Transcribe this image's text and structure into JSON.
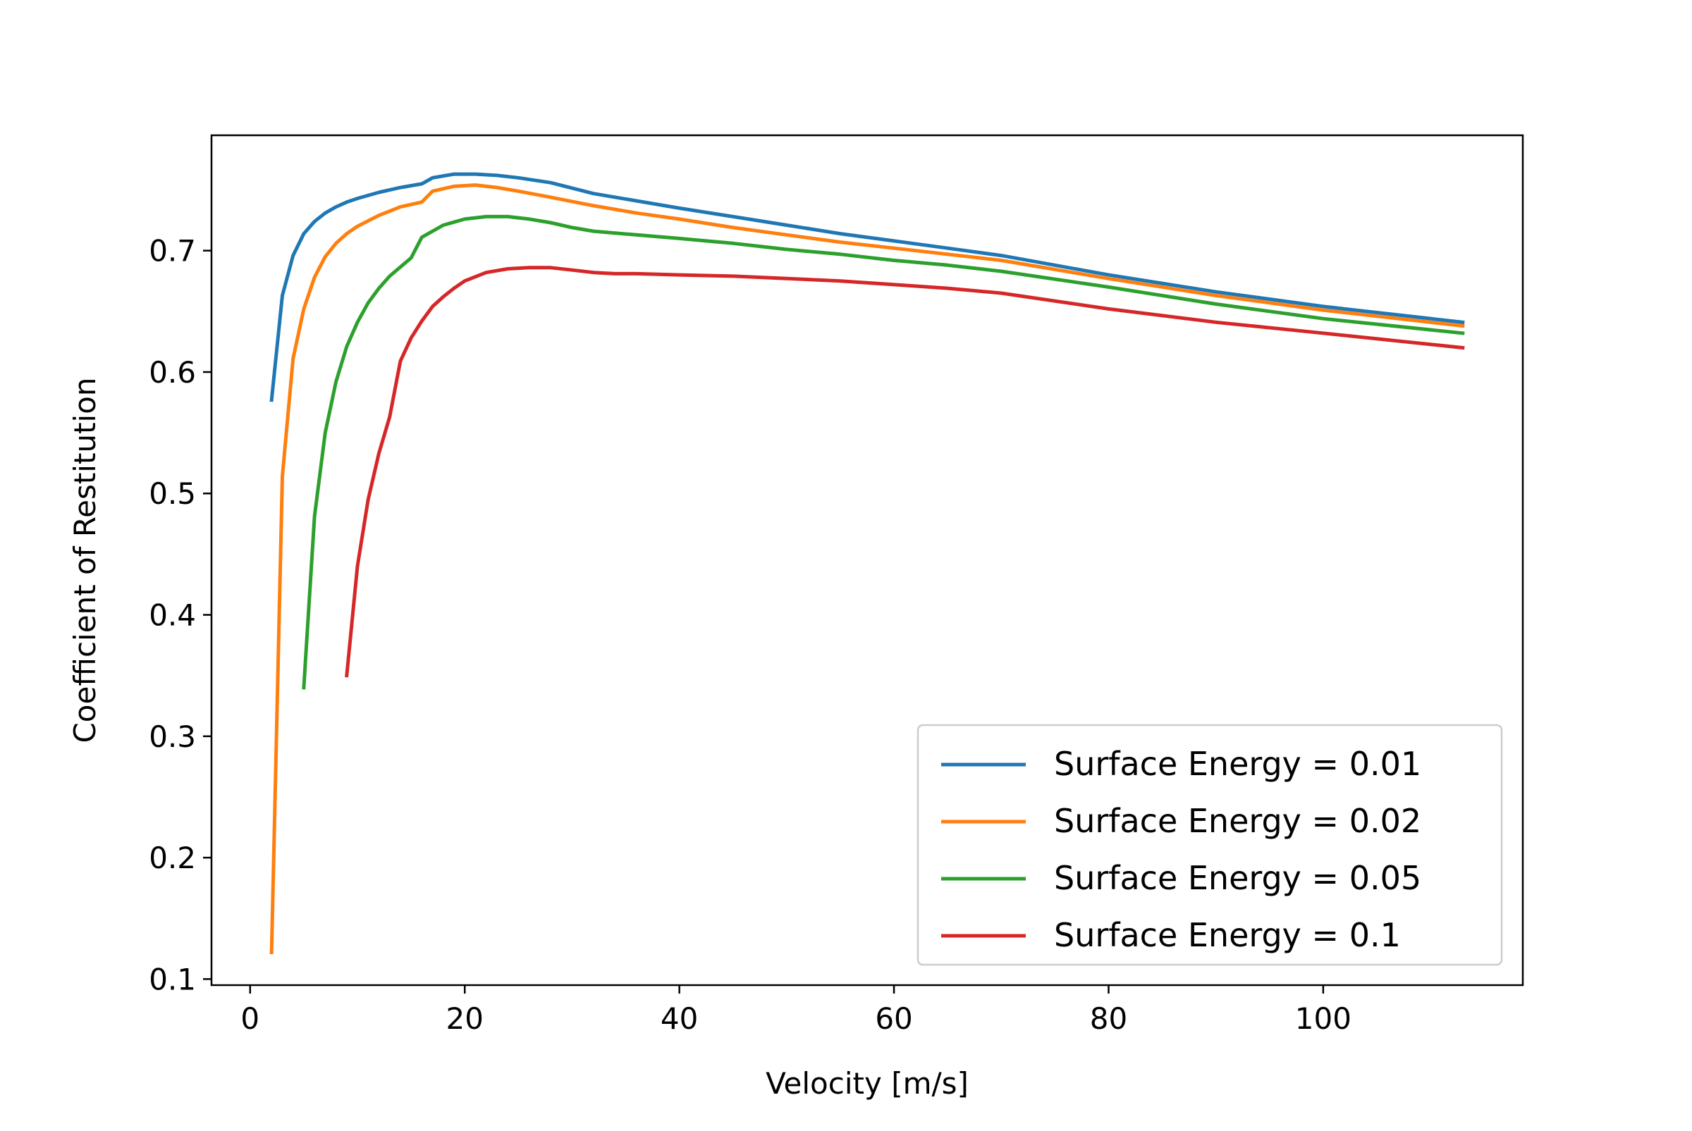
{
  "chart_data": {
    "type": "line",
    "title": "",
    "xlabel": "Velocity [m/s]",
    "ylabel": "Coefficient of Restitution",
    "xlim": [
      -3.6,
      118.6
    ],
    "ylim": [
      0.095,
      0.795
    ],
    "xticks": [
      0,
      20,
      40,
      60,
      80,
      100
    ],
    "xtick_labels": [
      "0",
      "20",
      "40",
      "60",
      "80",
      "100"
    ],
    "yticks": [
      0.1,
      0.2,
      0.3,
      0.4,
      0.5,
      0.6,
      0.7
    ],
    "ytick_labels": [
      "0.1",
      "0.2",
      "0.3",
      "0.4",
      "0.5",
      "0.6",
      "0.7"
    ],
    "grid": false,
    "legend_position": "lower-right",
    "series": [
      {
        "name": "Surface Energy = 0.01",
        "color": "#1f77b4",
        "x": [
          2,
          3,
          4,
          5,
          6,
          7,
          8,
          9,
          10,
          12,
          14,
          16,
          17,
          19,
          21,
          23,
          25,
          28,
          32,
          36,
          40,
          45,
          50,
          55,
          60,
          65,
          70,
          80,
          90,
          100,
          113
        ],
        "y": [
          0.577,
          0.663,
          0.696,
          0.714,
          0.724,
          0.731,
          0.736,
          0.74,
          0.743,
          0.748,
          0.752,
          0.755,
          0.76,
          0.763,
          0.763,
          0.762,
          0.76,
          0.756,
          0.747,
          0.741,
          0.735,
          0.728,
          0.721,
          0.714,
          0.708,
          0.702,
          0.696,
          0.68,
          0.666,
          0.654,
          0.641
        ]
      },
      {
        "name": "Surface Energy = 0.02",
        "color": "#ff7f0e",
        "x": [
          2,
          3,
          4,
          5,
          6,
          7,
          8,
          9,
          10,
          12,
          14,
          16,
          17,
          19,
          21,
          23,
          25,
          28,
          32,
          36,
          40,
          45,
          50,
          55,
          60,
          65,
          70,
          80,
          90,
          100,
          113
        ],
        "y": [
          0.122,
          0.514,
          0.611,
          0.652,
          0.678,
          0.695,
          0.706,
          0.714,
          0.72,
          0.729,
          0.736,
          0.74,
          0.749,
          0.753,
          0.754,
          0.752,
          0.749,
          0.744,
          0.737,
          0.731,
          0.726,
          0.719,
          0.713,
          0.707,
          0.702,
          0.697,
          0.692,
          0.677,
          0.663,
          0.651,
          0.638
        ]
      },
      {
        "name": "Surface Energy = 0.05",
        "color": "#2ca02c",
        "x": [
          5,
          6,
          7,
          8,
          9,
          10,
          11,
          12,
          13,
          15,
          16,
          18,
          20,
          22,
          24,
          26,
          28,
          30,
          32,
          36,
          40,
          45,
          50,
          55,
          60,
          65,
          70,
          80,
          90,
          100,
          113
        ],
        "y": [
          0.34,
          0.481,
          0.55,
          0.592,
          0.621,
          0.641,
          0.657,
          0.669,
          0.679,
          0.694,
          0.711,
          0.721,
          0.726,
          0.728,
          0.728,
          0.726,
          0.723,
          0.719,
          0.716,
          0.713,
          0.71,
          0.706,
          0.701,
          0.697,
          0.692,
          0.688,
          0.683,
          0.67,
          0.656,
          0.644,
          0.632
        ]
      },
      {
        "name": "Surface Energy = 0.1",
        "color": "#d62728",
        "x": [
          9,
          10,
          11,
          12,
          13,
          14,
          15,
          16,
          17,
          18,
          19,
          20,
          22,
          24,
          26,
          28,
          30,
          32,
          34,
          36,
          40,
          45,
          50,
          55,
          60,
          65,
          70,
          80,
          90,
          100,
          113
        ],
        "y": [
          0.35,
          0.44,
          0.495,
          0.533,
          0.563,
          0.609,
          0.628,
          0.642,
          0.654,
          0.662,
          0.669,
          0.675,
          0.682,
          0.685,
          0.686,
          0.686,
          0.684,
          0.682,
          0.681,
          0.681,
          0.68,
          0.679,
          0.677,
          0.675,
          0.672,
          0.669,
          0.665,
          0.652,
          0.641,
          0.632,
          0.62
        ]
      }
    ]
  }
}
